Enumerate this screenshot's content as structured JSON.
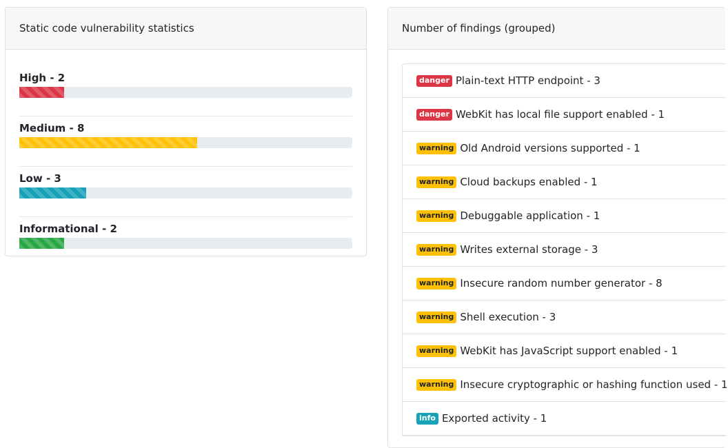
{
  "stats_card": {
    "title": "Static code vulnerability statistics",
    "items": [
      {
        "label": "High - 2",
        "fill_percent": 13.5,
        "color": "#dc3545"
      },
      {
        "label": "Medium - 8",
        "fill_percent": 53.5,
        "color": "#ffc107"
      },
      {
        "label": "Low - 3",
        "fill_percent": 20,
        "color": "#17a2b8"
      },
      {
        "label": "Informational - 2",
        "fill_percent": 13.5,
        "color": "#28a745"
      }
    ]
  },
  "findings_card": {
    "title": "Number of findings (grouped)",
    "rows": [
      {
        "badge": "danger",
        "text": "Plain-text HTTP endpoint - 3"
      },
      {
        "badge": "danger",
        "text": "WebKit has local file support enabled - 1"
      },
      {
        "badge": "warning",
        "text": "Old Android versions supported - 1"
      },
      {
        "badge": "warning",
        "text": "Cloud backups enabled - 1"
      },
      {
        "badge": "warning",
        "text": "Debuggable application - 1"
      },
      {
        "badge": "warning",
        "text": "Writes external storage - 3"
      },
      {
        "badge": "warning",
        "text": "Insecure random number generator - 8"
      },
      {
        "badge": "warning",
        "text": "Shell execution - 3"
      },
      {
        "badge": "warning",
        "text": "WebKit has JavaScript support enabled - 1"
      },
      {
        "badge": "warning",
        "text": "Insecure cryptographic or hashing function used - 1"
      },
      {
        "badge": "info",
        "text": "Exported activity - 1"
      }
    ]
  }
}
